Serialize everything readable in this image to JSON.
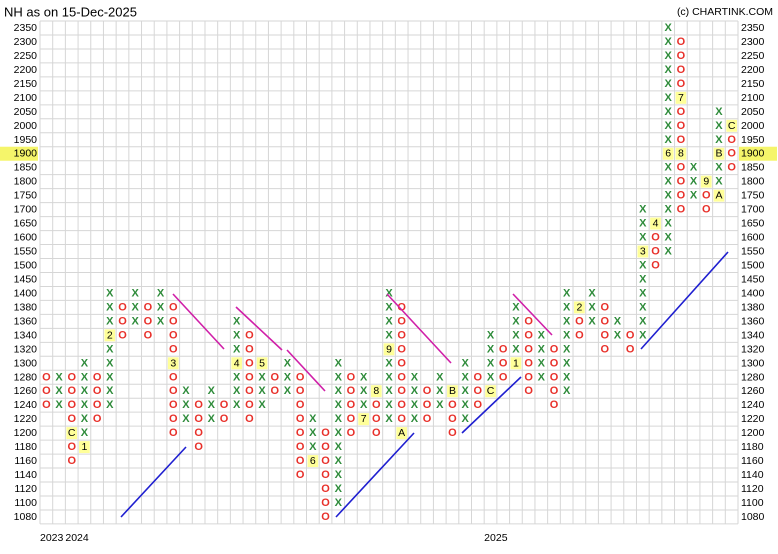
{
  "chart_data": {
    "type": "point_and_figure",
    "title": "NH as on 15-Dec-2025",
    "credit": "(c) CHARTINK.COM",
    "last_price": 1900,
    "colors": {
      "X": "#2e8b3a",
      "O": "#e8302a",
      "marker": "#ffff99",
      "last": "#f5f56a"
    },
    "grid": true,
    "yticks": [
      2350,
      2300,
      2250,
      2200,
      2150,
      2100,
      2050,
      2000,
      1950,
      1900,
      1850,
      1800,
      1750,
      1700,
      1650,
      1600,
      1550,
      1500,
      1450,
      1400,
      1380,
      1360,
      1340,
      1320,
      1300,
      1280,
      1260,
      1240,
      1220,
      1200,
      1180,
      1160,
      1140,
      1120,
      1100,
      1080
    ],
    "xticks": [
      {
        "value": 0,
        "label": "2023"
      },
      {
        "value": 2,
        "label": "2024"
      },
      {
        "value": 35,
        "label": "2025"
      }
    ],
    "columns": [
      {
        "type": "O",
        "low": 1240,
        "high": 1280
      },
      {
        "type": "X",
        "low": 1240,
        "high": 1280
      },
      {
        "type": "O",
        "low": 1160,
        "high": 1280,
        "markers": [
          {
            "price": 1200,
            "label": "C"
          }
        ]
      },
      {
        "type": "X",
        "low": 1180,
        "high": 1300,
        "markers": [
          {
            "price": 1180,
            "label": "1"
          }
        ]
      },
      {
        "type": "O",
        "low": 1220,
        "high": 1280
      },
      {
        "type": "X",
        "low": 1240,
        "high": 1400,
        "markers": [
          {
            "price": 1340,
            "label": "2"
          }
        ]
      },
      {
        "type": "O",
        "low": 1340,
        "high": 1380
      },
      {
        "type": "X",
        "low": 1360,
        "high": 1400
      },
      {
        "type": "O",
        "low": 1340,
        "high": 1380
      },
      {
        "type": "X",
        "low": 1360,
        "high": 1400
      },
      {
        "type": "O",
        "low": 1200,
        "high": 1380,
        "markers": [
          {
            "price": 1300,
            "label": "3"
          }
        ]
      },
      {
        "type": "X",
        "low": 1220,
        "high": 1260
      },
      {
        "type": "O",
        "low": 1180,
        "high": 1240
      },
      {
        "type": "X",
        "low": 1220,
        "high": 1260
      },
      {
        "type": "O",
        "low": 1220,
        "high": 1240
      },
      {
        "type": "X",
        "low": 1240,
        "high": 1360,
        "markers": [
          {
            "price": 1300,
            "label": "4"
          }
        ]
      },
      {
        "type": "O",
        "low": 1220,
        "high": 1340
      },
      {
        "type": "X",
        "low": 1240,
        "high": 1300,
        "markers": [
          {
            "price": 1300,
            "label": "5"
          }
        ]
      },
      {
        "type": "O",
        "low": 1260,
        "high": 1280
      },
      {
        "type": "X",
        "low": 1260,
        "high": 1300
      },
      {
        "type": "O",
        "low": 1140,
        "high": 1280
      },
      {
        "type": "X",
        "low": 1160,
        "high": 1220,
        "markers": [
          {
            "price": 1160,
            "label": "6"
          }
        ]
      },
      {
        "type": "O",
        "low": 1080,
        "high": 1200
      },
      {
        "type": "X",
        "low": 1100,
        "high": 1300
      },
      {
        "type": "O",
        "low": 1200,
        "high": 1280
      },
      {
        "type": "X",
        "low": 1220,
        "high": 1280,
        "markers": [
          {
            "price": 1220,
            "label": "7"
          }
        ]
      },
      {
        "type": "O",
        "low": 1200,
        "high": 1260,
        "markers": [
          {
            "price": 1260,
            "label": "8"
          }
        ]
      },
      {
        "type": "X",
        "low": 1220,
        "high": 1400,
        "markers": [
          {
            "price": 1320,
            "label": "9"
          }
        ]
      },
      {
        "type": "O",
        "low": 1200,
        "high": 1380,
        "markers": [
          {
            "price": 1200,
            "label": "A"
          }
        ]
      },
      {
        "type": "X",
        "low": 1220,
        "high": 1280
      },
      {
        "type": "O",
        "low": 1220,
        "high": 1260
      },
      {
        "type": "X",
        "low": 1240,
        "high": 1280
      },
      {
        "type": "O",
        "low": 1200,
        "high": 1260,
        "markers": [
          {
            "price": 1260,
            "label": "B"
          }
        ]
      },
      {
        "type": "X",
        "low": 1220,
        "high": 1300
      },
      {
        "type": "O",
        "low": 1240,
        "high": 1280
      },
      {
        "type": "X",
        "low": 1260,
        "high": 1340,
        "markers": [
          {
            "price": 1260,
            "label": "C"
          }
        ]
      },
      {
        "type": "O",
        "low": 1280,
        "high": 1320
      },
      {
        "type": "X",
        "low": 1300,
        "high": 1380,
        "markers": [
          {
            "price": 1300,
            "label": "1"
          }
        ]
      },
      {
        "type": "O",
        "low": 1260,
        "high": 1360
      },
      {
        "type": "X",
        "low": 1280,
        "high": 1340
      },
      {
        "type": "O",
        "low": 1240,
        "high": 1320
      },
      {
        "type": "X",
        "low": 1260,
        "high": 1400
      },
      {
        "type": "O",
        "low": 1340,
        "high": 1380,
        "markers": [
          {
            "price": 1380,
            "label": "2"
          }
        ]
      },
      {
        "type": "X",
        "low": 1360,
        "high": 1400
      },
      {
        "type": "O",
        "low": 1320,
        "high": 1380
      },
      {
        "type": "X",
        "low": 1340,
        "high": 1360
      },
      {
        "type": "O",
        "low": 1320,
        "high": 1340
      },
      {
        "type": "X",
        "low": 1340,
        "high": 1700,
        "markers": [
          {
            "price": 1550,
            "label": "3"
          }
        ]
      },
      {
        "type": "O",
        "low": 1500,
        "high": 1650,
        "markers": [
          {
            "price": 1650,
            "label": "4"
          }
        ]
      },
      {
        "type": "X",
        "low": 1550,
        "high": 2350,
        "markers": [
          {
            "price": 1900,
            "label": "6"
          }
        ]
      },
      {
        "type": "O",
        "low": 1700,
        "high": 2300,
        "markers": [
          {
            "price": 2100,
            "label": "7"
          },
          {
            "price": 1900,
            "label": "8"
          }
        ]
      },
      {
        "type": "X",
        "low": 1750,
        "high": 1850
      },
      {
        "type": "O",
        "low": 1700,
        "high": 1800,
        "markers": [
          {
            "price": 1800,
            "label": "9"
          }
        ]
      },
      {
        "type": "X",
        "low": 1750,
        "high": 2050,
        "markers": [
          {
            "price": 1750,
            "label": "A"
          },
          {
            "price": 1900,
            "label": "B"
          }
        ]
      },
      {
        "type": "O",
        "low": 1850,
        "high": 2000,
        "markers": [
          {
            "price": 2000,
            "label": "C"
          }
        ]
      }
    ]
  }
}
